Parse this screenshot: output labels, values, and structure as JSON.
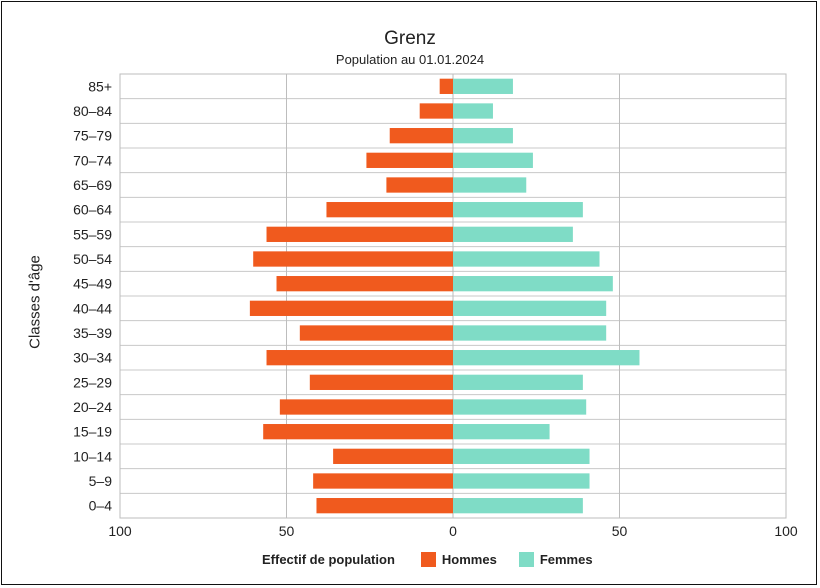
{
  "chart_data": {
    "type": "bar",
    "subtype": "population-pyramid",
    "title": "Grenz",
    "subtitle": "Population au 01.01.2024",
    "ylabel": "Classes d'âge",
    "xlabel": "Effectif de population",
    "xlim": [
      -100,
      100
    ],
    "xticks": [
      100,
      50,
      0,
      50,
      100
    ],
    "xtick_values": [
      -100,
      -50,
      0,
      50,
      100
    ],
    "categories": [
      "0–4",
      "5–9",
      "10–14",
      "15–19",
      "20–24",
      "25–29",
      "30–34",
      "35–39",
      "40–44",
      "45–49",
      "50–54",
      "55–59",
      "60–64",
      "65–69",
      "70–74",
      "75–79",
      "80–84",
      "85+"
    ],
    "series": [
      {
        "name": "Hommes",
        "color": "#f05a1e",
        "values": [
          41,
          42,
          36,
          57,
          52,
          43,
          56,
          46,
          61,
          53,
          60,
          56,
          38,
          20,
          26,
          19,
          10,
          4
        ]
      },
      {
        "name": "Femmes",
        "color": "#7fdcc6",
        "values": [
          39,
          41,
          41,
          29,
          40,
          39,
          56,
          46,
          46,
          48,
          44,
          36,
          39,
          22,
          24,
          18,
          12,
          18
        ]
      }
    ],
    "grid": true,
    "legend": "bottom"
  }
}
